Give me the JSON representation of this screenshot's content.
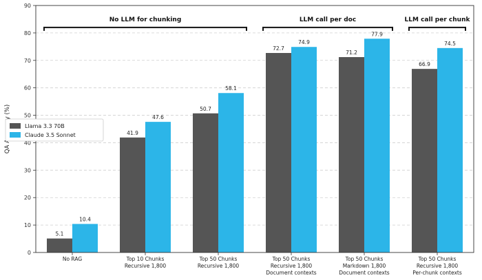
{
  "chart_data": {
    "type": "bar",
    "ylabel": "QA Accuracy (%)",
    "xlabel": "",
    "ylim": [
      0,
      90
    ],
    "yticks": [
      0,
      10,
      20,
      30,
      40,
      50,
      60,
      70,
      80,
      90
    ],
    "grid": "horizontal dashed",
    "legend_position": "middle-left",
    "categories": [
      [
        "No RAG"
      ],
      [
        "Top 10 Chunks",
        "Recursive 1,800"
      ],
      [
        "Top 50 Chunks",
        "Recursive 1,800"
      ],
      [
        "Top 50 Chunks",
        "Recursive 1,800",
        "Document contexts"
      ],
      [
        "Top 50 Chunks",
        "Markdown 1,800",
        "Document contexts"
      ],
      [
        "Top 50 Chunks",
        "Recursive 1,800",
        "Per-chunk contexts"
      ]
    ],
    "series": [
      {
        "name": "Llama 3.3 70B",
        "color": "#555555",
        "values": [
          5.1,
          41.9,
          50.7,
          72.7,
          71.2,
          66.9
        ]
      },
      {
        "name": "Claude 3.5 Sonnet",
        "color": "#2cb5e8",
        "values": [
          10.4,
          47.6,
          58.1,
          74.9,
          77.9,
          74.5
        ]
      }
    ],
    "group_brackets": [
      {
        "label": "No LLM for chunking",
        "from": 0,
        "to": 2
      },
      {
        "label": "LLM call per doc",
        "from": 3,
        "to": 4
      },
      {
        "label": "LLM call per chunk",
        "from": 5,
        "to": 5
      }
    ]
  }
}
